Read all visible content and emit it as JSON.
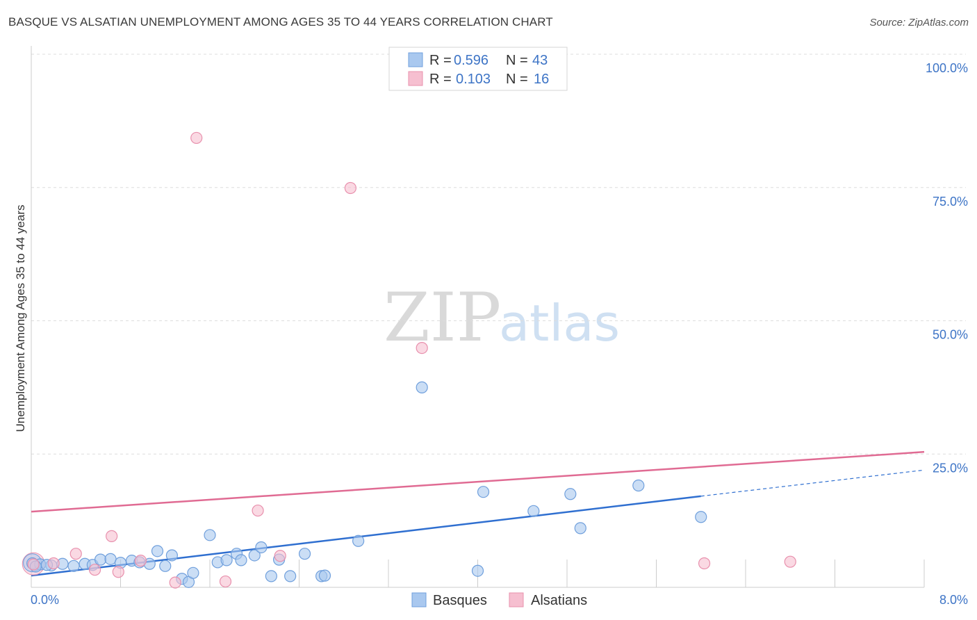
{
  "title": "BASQUE VS ALSATIAN UNEMPLOYMENT AMONG AGES 35 TO 44 YEARS CORRELATION CHART",
  "source": "Source: ZipAtlas.com",
  "watermark": {
    "part1": "ZIP",
    "part2": "atlas"
  },
  "colors": {
    "basques_fill": "#a9c8ef",
    "basques_stroke": "#6f9fdc",
    "basques_line": "#2f6fd0",
    "alsatians_fill": "#f6bfd0",
    "alsatians_stroke": "#e890ad",
    "alsatians_line": "#e06b93",
    "tick": "#3d74c6",
    "grid": "#dddddd"
  },
  "chart_data": {
    "type": "scatter",
    "title": "BASQUE VS ALSATIAN UNEMPLOYMENT AMONG AGES 35 TO 44 YEARS CORRELATION CHART",
    "xlabel": "",
    "ylabel": "Unemployment Among Ages 35 to 44 years",
    "xlim": [
      0,
      8
    ],
    "ylim": [
      0,
      100
    ],
    "x_tick_labels": [
      "0.0%",
      "8.0%"
    ],
    "y_ticks": [
      25,
      50,
      75,
      100
    ],
    "y_tick_labels": [
      "25.0%",
      "50.0%",
      "75.0%",
      "100.0%"
    ],
    "legend": [
      {
        "name": "Basques",
        "r_label": "R =",
        "r": "0.596",
        "n_label": "N =",
        "n": "43"
      },
      {
        "name": "Alsatians",
        "r_label": "R =",
        "r": "0.103",
        "n_label": "N =",
        "n": "16"
      }
    ],
    "series": [
      {
        "name": "Basques",
        "points": [
          [
            0.01,
            4.5
          ],
          [
            0.08,
            4.3
          ],
          [
            0.18,
            4.1
          ],
          [
            0.28,
            4.4
          ],
          [
            0.38,
            4.0
          ],
          [
            0.48,
            4.4
          ],
          [
            0.55,
            4.2
          ],
          [
            0.62,
            5.2
          ],
          [
            0.71,
            5.3
          ],
          [
            0.8,
            4.6
          ],
          [
            0.9,
            5.0
          ],
          [
            0.97,
            4.7
          ],
          [
            1.06,
            4.4
          ],
          [
            1.13,
            6.8
          ],
          [
            1.2,
            4.0
          ],
          [
            1.26,
            6.0
          ],
          [
            1.35,
            1.6
          ],
          [
            1.41,
            1.0
          ],
          [
            1.45,
            2.7
          ],
          [
            1.6,
            9.8
          ],
          [
            1.67,
            4.7
          ],
          [
            1.75,
            5.1
          ],
          [
            1.84,
            6.3
          ],
          [
            1.88,
            5.1
          ],
          [
            2.0,
            6.0
          ],
          [
            2.06,
            7.5
          ],
          [
            2.15,
            2.1
          ],
          [
            2.22,
            5.2
          ],
          [
            2.32,
            2.1
          ],
          [
            2.45,
            6.3
          ],
          [
            2.6,
            2.1
          ],
          [
            2.63,
            2.2
          ],
          [
            2.93,
            8.7
          ],
          [
            3.5,
            37.5
          ],
          [
            4.0,
            3.1
          ],
          [
            4.05,
            17.9
          ],
          [
            4.5,
            14.3
          ],
          [
            4.83,
            17.5
          ],
          [
            4.92,
            11.1
          ],
          [
            5.44,
            19.1
          ],
          [
            6.0,
            13.2
          ],
          [
            0.04,
            3.9
          ],
          [
            0.14,
            4.2
          ]
        ]
      },
      {
        "name": "Alsatians",
        "points": [
          [
            0.02,
            4.3
          ],
          [
            0.2,
            4.5
          ],
          [
            0.4,
            6.3
          ],
          [
            0.57,
            3.3
          ],
          [
            0.72,
            9.6
          ],
          [
            0.78,
            2.9
          ],
          [
            0.98,
            5.0
          ],
          [
            1.29,
            0.9
          ],
          [
            1.48,
            84.3
          ],
          [
            1.74,
            1.1
          ],
          [
            2.03,
            14.4
          ],
          [
            2.23,
            5.9
          ],
          [
            2.86,
            74.9
          ],
          [
            3.5,
            44.9
          ],
          [
            6.03,
            4.5
          ],
          [
            6.8,
            4.8
          ]
        ]
      }
    ],
    "trendlines": [
      {
        "name": "Basques",
        "x": [
          0,
          6.0
        ],
        "y": [
          2.2,
          17.1
        ],
        "dashed_to_x": 8,
        "dashed_to_y": 22.0
      },
      {
        "name": "Alsatians",
        "x": [
          0,
          8
        ],
        "y": [
          14.2,
          25.4
        ]
      }
    ],
    "bottom_legend": [
      "Basques",
      "Alsatians"
    ]
  }
}
